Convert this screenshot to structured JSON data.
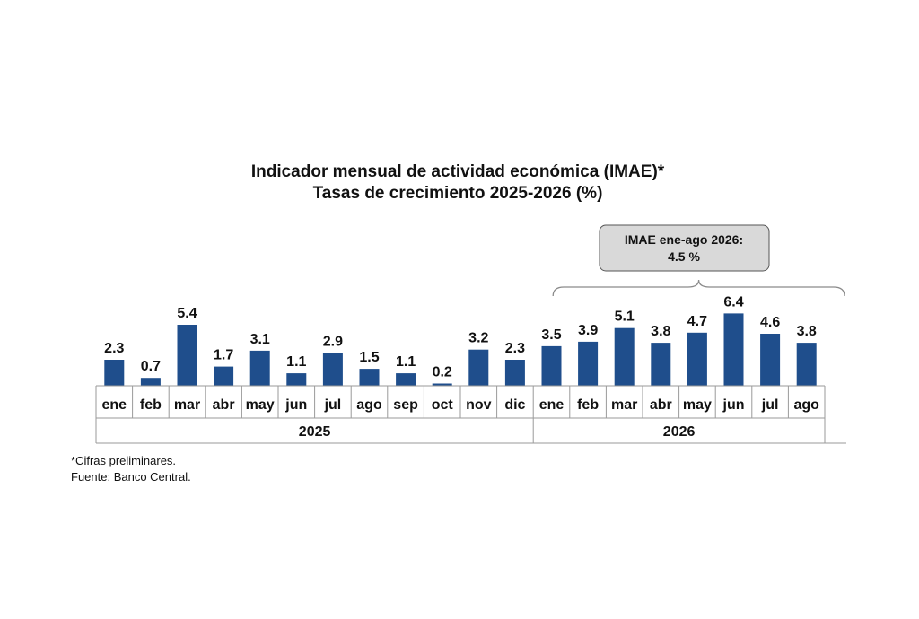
{
  "chart_data": {
    "type": "bar",
    "title": "Indicador mensual de actividad económica (IMAE)*",
    "subtitle": "Tasas de crecimiento 2025-2026 (%)",
    "groups": [
      {
        "year": "2025",
        "categories": [
          "ene",
          "feb",
          "mar",
          "abr",
          "may",
          "jun",
          "jul",
          "ago",
          "sep",
          "oct",
          "nov",
          "dic"
        ],
        "values": [
          2.3,
          0.7,
          5.4,
          1.7,
          3.1,
          1.1,
          2.9,
          1.5,
          1.1,
          0.2,
          3.2,
          2.3
        ],
        "labels": [
          "2.3",
          "0.7",
          "5.4",
          "1.7",
          "3.1",
          "1.1",
          "2.9",
          "1.5",
          "1.1",
          "0.2",
          "3.2",
          "2.3"
        ]
      },
      {
        "year": "2026",
        "categories": [
          "ene",
          "feb",
          "mar",
          "abr",
          "may",
          "jun",
          "jul",
          "ago"
        ],
        "values": [
          3.5,
          3.9,
          5.1,
          3.8,
          4.7,
          6.4,
          4.6,
          3.8
        ],
        "labels": [
          "3.5",
          "3.9",
          "5.1",
          "3.8",
          "4.7",
          "6.4",
          "4.6",
          "3.8"
        ]
      }
    ],
    "ylim": [
      0,
      6.4
    ],
    "grid": false,
    "bar_color": "#1f4e8c",
    "annotation": {
      "line1": "IMAE ene-ago 2026:",
      "line2": "4.5 %",
      "applies_to": "2026"
    }
  },
  "notes": {
    "line1": "*Cifras preliminares.",
    "line2": "Fuente: Banco Central."
  },
  "colors": {
    "bar": "#1f4e8c",
    "axis": "#9a9a9a",
    "callout_fill": "#d9d9d9",
    "callout_stroke": "#555555"
  }
}
